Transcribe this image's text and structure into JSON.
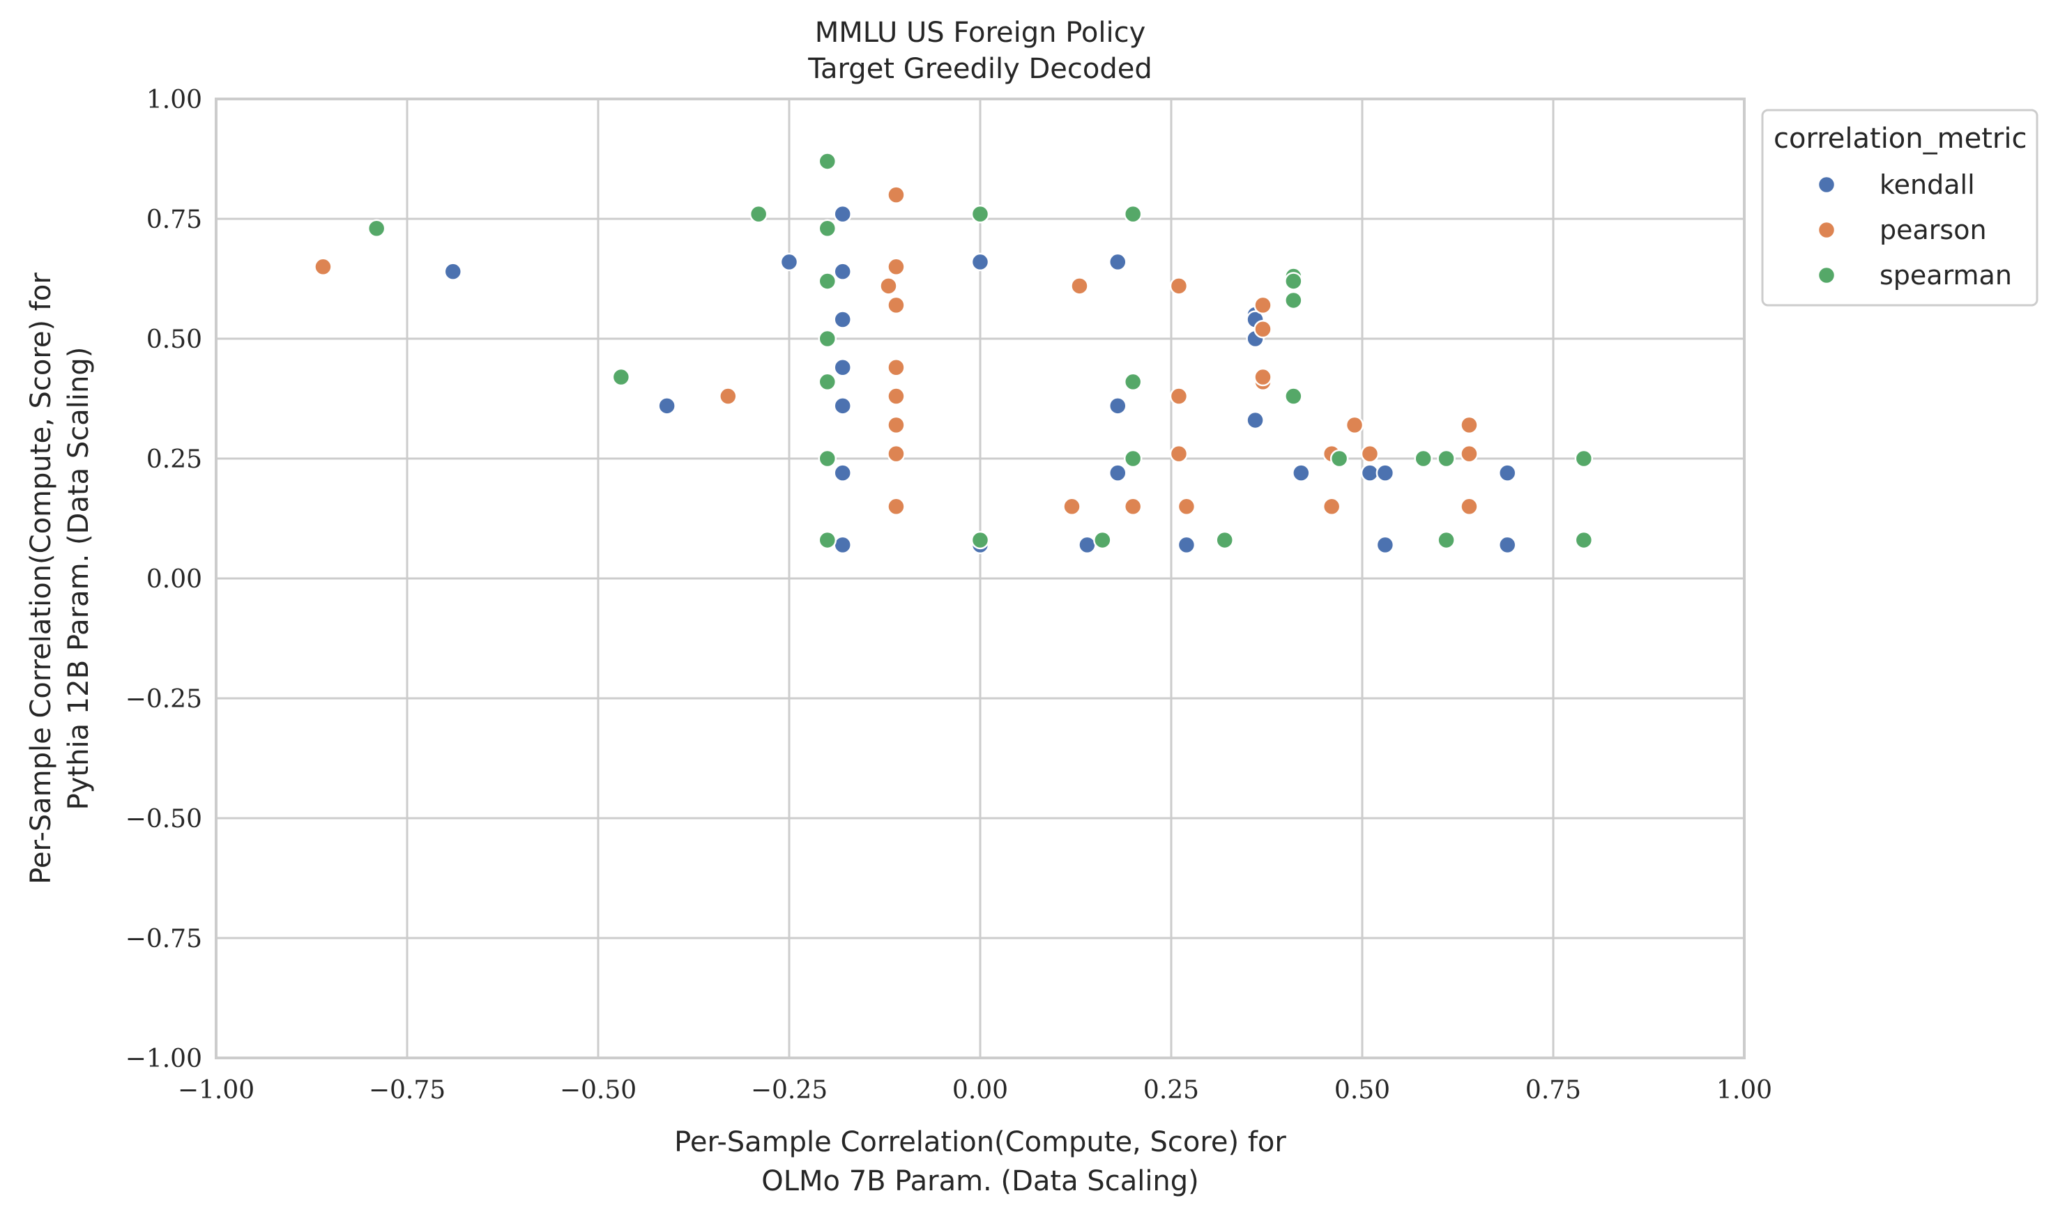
{
  "chart_data": {
    "type": "scatter",
    "title_lines": [
      "MMLU US Foreign Policy",
      "Target Greedily Decoded"
    ],
    "xlabel_lines": [
      "Per-Sample Correlation(Compute, Score) for",
      "OLMo 7B Param. (Data Scaling)"
    ],
    "ylabel_lines": [
      "Per-Sample Correlation(Compute, Score) for",
      "Pythia 12B Param. (Data Scaling)"
    ],
    "xlim": [
      -1.0,
      1.0
    ],
    "ylim": [
      -1.0,
      1.0
    ],
    "xticks": [
      -1.0,
      -0.75,
      -0.5,
      -0.25,
      0.0,
      0.25,
      0.5,
      0.75,
      1.0
    ],
    "yticks": [
      -1.0,
      -0.75,
      -0.5,
      -0.25,
      0.0,
      0.25,
      0.5,
      0.75,
      1.0
    ],
    "xtick_labels": [
      "−1.00",
      "−0.75",
      "−0.50",
      "−0.25",
      "0.00",
      "0.25",
      "0.50",
      "0.75",
      "1.00"
    ],
    "ytick_labels": [
      "−1.00",
      "−0.75",
      "−0.50",
      "−0.25",
      "0.00",
      "0.25",
      "0.50",
      "0.75",
      "1.00"
    ],
    "grid": true,
    "legend_title": "correlation_metric",
    "legend_position": "outside upper right",
    "series": [
      {
        "name": "kendall",
        "color": "#4c72b0",
        "points": [
          [
            -0.69,
            0.64
          ],
          [
            -0.41,
            0.36
          ],
          [
            -0.25,
            0.66
          ],
          [
            -0.18,
            0.76
          ],
          [
            -0.18,
            0.64
          ],
          [
            -0.18,
            0.54
          ],
          [
            -0.18,
            0.44
          ],
          [
            -0.18,
            0.36
          ],
          [
            -0.18,
            0.22
          ],
          [
            -0.18,
            0.07
          ],
          [
            0.0,
            0.66
          ],
          [
            0.0,
            0.07
          ],
          [
            0.14,
            0.07
          ],
          [
            0.18,
            0.66
          ],
          [
            0.18,
            0.36
          ],
          [
            0.18,
            0.22
          ],
          [
            0.27,
            0.07
          ],
          [
            0.36,
            0.55
          ],
          [
            0.36,
            0.54
          ],
          [
            0.36,
            0.5
          ],
          [
            0.36,
            0.33
          ],
          [
            0.42,
            0.22
          ],
          [
            0.51,
            0.22
          ],
          [
            0.53,
            0.22
          ],
          [
            0.53,
            0.07
          ],
          [
            0.69,
            0.22
          ],
          [
            0.69,
            0.07
          ]
        ]
      },
      {
        "name": "pearson",
        "color": "#dd8452",
        "points": [
          [
            -0.86,
            0.65
          ],
          [
            -0.33,
            0.38
          ],
          [
            -0.11,
            0.8
          ],
          [
            -0.12,
            0.61
          ],
          [
            -0.11,
            0.65
          ],
          [
            -0.11,
            0.57
          ],
          [
            -0.11,
            0.44
          ],
          [
            -0.11,
            0.38
          ],
          [
            -0.11,
            0.32
          ],
          [
            -0.11,
            0.26
          ],
          [
            -0.11,
            0.15
          ],
          [
            0.12,
            0.15
          ],
          [
            0.13,
            0.61
          ],
          [
            0.2,
            0.15
          ],
          [
            0.26,
            0.61
          ],
          [
            0.26,
            0.38
          ],
          [
            0.26,
            0.26
          ],
          [
            0.27,
            0.15
          ],
          [
            0.37,
            0.57
          ],
          [
            0.37,
            0.52
          ],
          [
            0.37,
            0.41
          ],
          [
            0.37,
            0.42
          ],
          [
            0.46,
            0.26
          ],
          [
            0.46,
            0.15
          ],
          [
            0.49,
            0.32
          ],
          [
            0.51,
            0.26
          ],
          [
            0.64,
            0.32
          ],
          [
            0.64,
            0.26
          ],
          [
            0.64,
            0.15
          ]
        ]
      },
      {
        "name": "spearman",
        "color": "#55a868",
        "points": [
          [
            -0.79,
            0.73
          ],
          [
            -0.47,
            0.42
          ],
          [
            -0.29,
            0.76
          ],
          [
            -0.2,
            0.87
          ],
          [
            -0.2,
            0.73
          ],
          [
            -0.2,
            0.62
          ],
          [
            -0.2,
            0.5
          ],
          [
            -0.2,
            0.41
          ],
          [
            -0.2,
            0.25
          ],
          [
            -0.2,
            0.08
          ],
          [
            0.0,
            0.76
          ],
          [
            0.0,
            0.08
          ],
          [
            0.16,
            0.08
          ],
          [
            0.2,
            0.76
          ],
          [
            0.2,
            0.41
          ],
          [
            0.2,
            0.25
          ],
          [
            0.32,
            0.08
          ],
          [
            0.41,
            0.63
          ],
          [
            0.41,
            0.62
          ],
          [
            0.41,
            0.58
          ],
          [
            0.41,
            0.38
          ],
          [
            0.47,
            0.25
          ],
          [
            0.58,
            0.25
          ],
          [
            0.61,
            0.25
          ],
          [
            0.61,
            0.08
          ],
          [
            0.79,
            0.25
          ],
          [
            0.79,
            0.08
          ]
        ]
      }
    ]
  }
}
